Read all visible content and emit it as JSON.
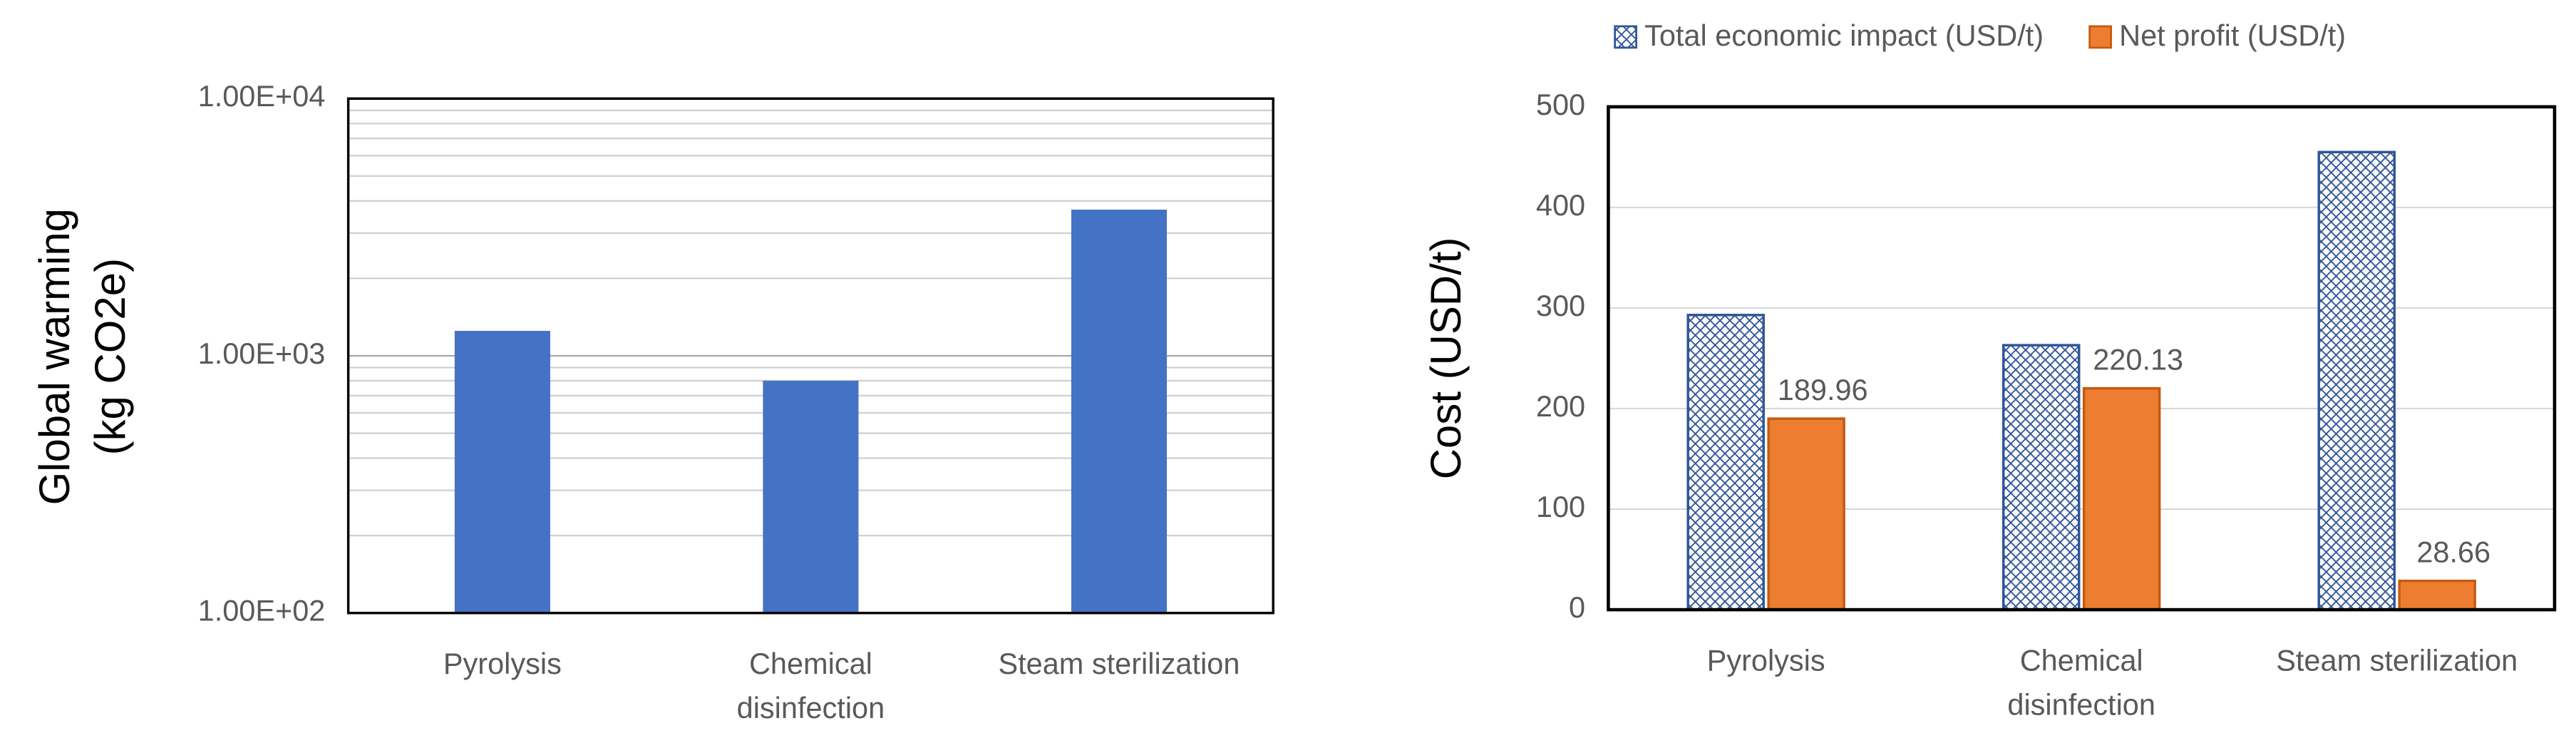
{
  "chart_data": [
    {
      "type": "bar",
      "log_scale": true,
      "grid": true,
      "minor_grid": true,
      "ylabel": "Global warming\n(kg CO2e)",
      "categories": [
        "Pyrolysis",
        "Chemical\ndisinfection",
        "Steam sterilization"
      ],
      "values": [
        1250,
        800,
        3700
      ],
      "color": "#4472c4",
      "ylim": [
        100,
        10000
      ],
      "yticks": [
        {
          "value": 100,
          "label": "1.00E+02"
        },
        {
          "value": 1000,
          "label": "1.00E+03"
        },
        {
          "value": 10000,
          "label": "1.00E+04"
        }
      ]
    },
    {
      "type": "grouped_bar",
      "grid": true,
      "legend": "top",
      "ylabel": "Cost (USD/t)",
      "categories": [
        "Pyrolysis",
        "Chemical\ndisinfection",
        "Steam sterilization"
      ],
      "series": [
        {
          "name": "Total economic impact (USD/t)",
          "color": "#2f5597",
          "pattern": "crosshatch",
          "values": [
            293,
            263,
            455
          ]
        },
        {
          "name": "Net profit (USD/t)",
          "color": "#ed7d31",
          "data_labels": true,
          "values": [
            189.96,
            220.13,
            28.66
          ]
        }
      ],
      "ylim": [
        0,
        500
      ],
      "yticks": [
        0,
        100,
        200,
        300,
        400,
        500
      ]
    }
  ]
}
